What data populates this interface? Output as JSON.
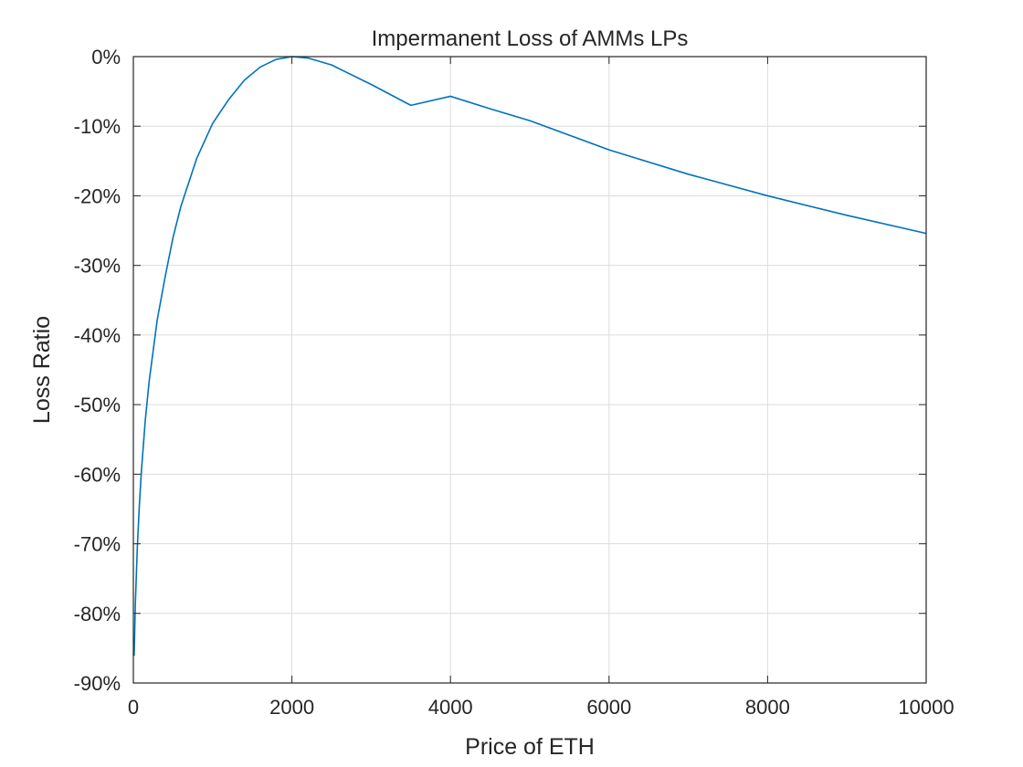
{
  "chart_data": {
    "type": "line",
    "title": "Impermanent Loss of AMMs LPs",
    "xlabel": "Price of ETH",
    "ylabel": "Loss Ratio",
    "xlim": [
      0,
      10000
    ],
    "ylim": [
      -90,
      0
    ],
    "x_ticks": [
      0,
      2000,
      4000,
      6000,
      8000,
      10000
    ],
    "x_tick_labels": [
      "0",
      "2000",
      "4000",
      "6000",
      "8000",
      "10000"
    ],
    "y_ticks": [
      0,
      -10,
      -20,
      -30,
      -40,
      -50,
      -60,
      -70,
      -80,
      -90
    ],
    "y_tick_labels": [
      "0%",
      "-10%",
      "-20%",
      "-30%",
      "-40%",
      "-50%",
      "-60%",
      "-70%",
      "-80%",
      "-90%"
    ],
    "grid": true,
    "colors": {
      "line": "#0072BD",
      "axes": "#262626",
      "grid": "#dcdcdc"
    },
    "series": [
      {
        "x": [
          10,
          25,
          50,
          75,
          100,
          150,
          200,
          300,
          400,
          500,
          600,
          800,
          1000,
          1200,
          1400,
          1600,
          1800,
          2000,
          2200,
          2500,
          3000,
          3500,
          4000,
          4500,
          5000,
          6000,
          7000,
          8000,
          9000,
          10000
        ],
        "y": [
          -86.1,
          -78.6,
          -70.5,
          -64.6,
          -59.8,
          -52.3,
          -46.6,
          -37.9,
          -31.7,
          -26.0,
          -21.5,
          -14.6,
          -9.6,
          -6.2,
          -3.4,
          -1.5,
          -0.4,
          0.0,
          -0.2,
          -1.2,
          -4.0,
          -7.0,
          -5.7,
          -7.5,
          -9.2,
          -13.4,
          -16.9,
          -20.0,
          -22.8,
          -25.4
        ]
      }
    ]
  }
}
